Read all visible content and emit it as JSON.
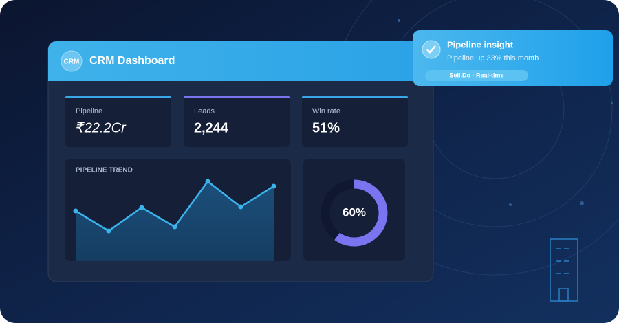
{
  "header": {
    "logo": "CRM",
    "title": "CRM Dashboard"
  },
  "kpis": [
    {
      "label": "Pipeline",
      "value": "₹22.2Cr",
      "color": "#3aa8e8"
    },
    {
      "label": "Leads",
      "value": "2,244",
      "color": "#7b74f0"
    },
    {
      "label": "Win rate",
      "value": "51%",
      "color": "#3aa8e8"
    }
  ],
  "chart_data": [
    {
      "type": "line",
      "title": "PIPELINE TREND",
      "values": [
        73,
        44,
        78,
        50,
        116,
        79,
        109
      ],
      "ylim": [
        0,
        125
      ],
      "color": "#3bb4ee"
    },
    {
      "type": "pie",
      "value": 60,
      "label": "60%",
      "color": "#7b74f0"
    }
  ],
  "notification": {
    "title": "Pipeline insight",
    "message": "Pipeline up 33% this month",
    "tag": "Sell.Do · Real-time"
  }
}
